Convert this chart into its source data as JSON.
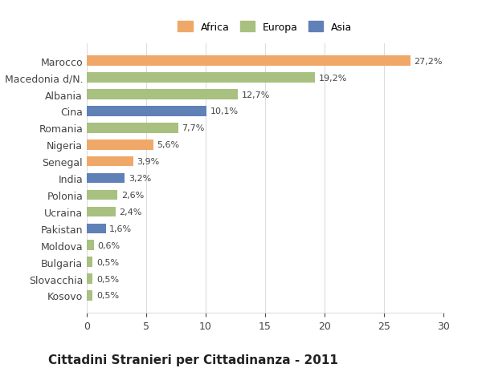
{
  "categories": [
    "Kosovo",
    "Slovacchia",
    "Bulgaria",
    "Moldova",
    "Pakistan",
    "Ucraina",
    "Polonia",
    "India",
    "Senegal",
    "Nigeria",
    "Romania",
    "Cina",
    "Albania",
    "Macedonia d/N.",
    "Marocco"
  ],
  "values": [
    0.5,
    0.5,
    0.5,
    0.6,
    1.6,
    2.4,
    2.6,
    3.2,
    3.9,
    5.6,
    7.7,
    10.1,
    12.7,
    19.2,
    27.2
  ],
  "continents": [
    "Europa",
    "Europa",
    "Europa",
    "Europa",
    "Asia",
    "Europa",
    "Europa",
    "Asia",
    "Africa",
    "Africa",
    "Europa",
    "Asia",
    "Europa",
    "Europa",
    "Africa"
  ],
  "colors": {
    "Africa": "#F0A868",
    "Europa": "#A8C080",
    "Asia": "#6080B8"
  },
  "labels": [
    "0,5%",
    "0,5%",
    "0,5%",
    "0,6%",
    "1,6%",
    "2,4%",
    "2,6%",
    "3,2%",
    "3,9%",
    "5,6%",
    "7,7%",
    "10,1%",
    "12,7%",
    "19,2%",
    "27,2%"
  ],
  "xlim": [
    0,
    30
  ],
  "xticks": [
    0,
    5,
    10,
    15,
    20,
    25,
    30
  ],
  "title": "Cittadini Stranieri per Cittadinanza - 2011",
  "background_color": "#FFFFFF",
  "bar_height": 0.6,
  "grid_color": "#DDDDDD",
  "title_fontsize": 11,
  "subtitle_fontsize": 8,
  "label_fontsize": 8,
  "tick_fontsize": 9
}
